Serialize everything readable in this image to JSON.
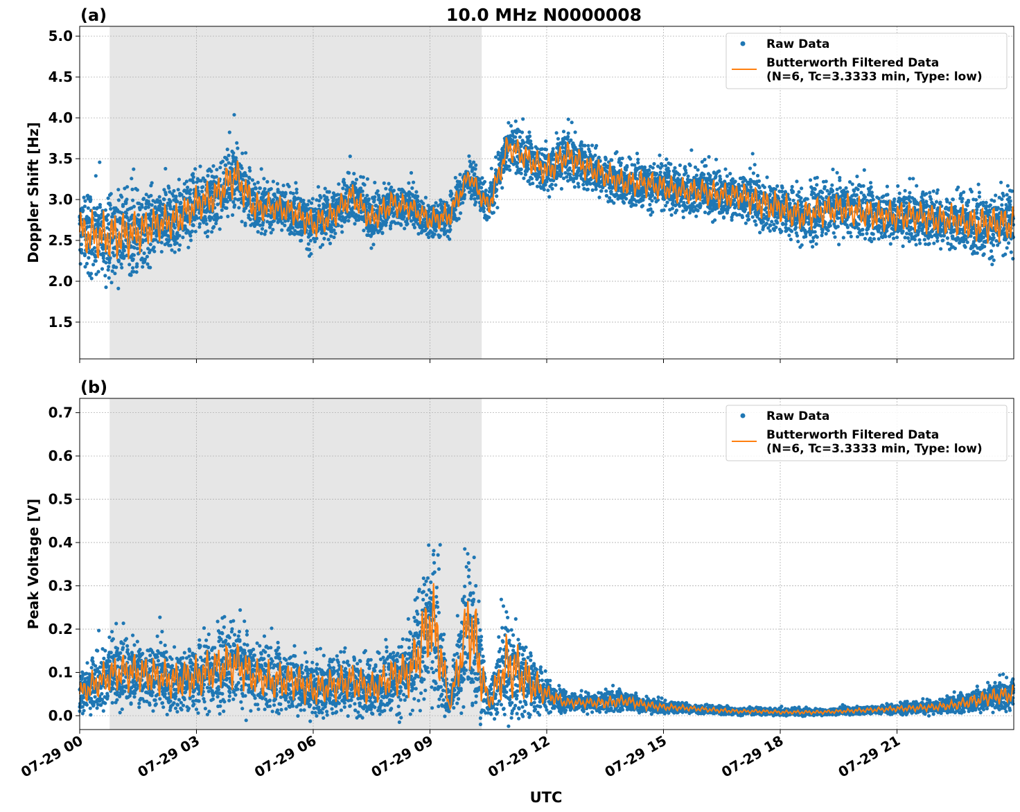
{
  "figure": {
    "title": "10.0 MHz N0000008",
    "xlabel": "UTC",
    "colors": {
      "raw": "#1f77b4",
      "filtered": "#ff7f0e",
      "shade": "#e6e6e6",
      "grid": "#b0b0b0"
    }
  },
  "chart_data": [
    {
      "type": "scatter",
      "panel_label": "(a)",
      "ylabel": "Doppler Shift [Hz]",
      "xlim": [
        0,
        24
      ],
      "ylim": [
        1.05,
        5.12
      ],
      "yticks": [
        1.5,
        2.0,
        2.5,
        3.0,
        3.5,
        4.0,
        4.5,
        5.0
      ],
      "ytick_labels": [
        "1.5",
        "2.0",
        "2.5",
        "3.0",
        "3.5",
        "4.0",
        "4.5",
        "5.0"
      ],
      "xticks": [
        0,
        3,
        6,
        9,
        12,
        15,
        18,
        21
      ],
      "xtick_labels": [
        "07-29 00",
        "07-29 03",
        "07-29 06",
        "07-29 09",
        "07-29 12",
        "07-29 15",
        "07-29 18",
        "07-29 21"
      ],
      "shaded_interval": [
        0.77,
        10.33
      ],
      "grid": true,
      "legend_position": "upper right",
      "legend": [
        "Raw Data",
        "Butterworth Filtered Data",
        "(N=6, Tc=3.3333 min, Type: low)"
      ],
      "series": [
        {
          "name": "Raw Data",
          "x": [
            0,
            0.5,
            1,
            1.5,
            2,
            2.5,
            3,
            3.5,
            4,
            4.5,
            5,
            5.5,
            6,
            6.5,
            7,
            7.5,
            8,
            8.5,
            9,
            9.5,
            10,
            10.5,
            11,
            11.5,
            12,
            12.5,
            13,
            13.5,
            14,
            14.5,
            15,
            15.5,
            16,
            16.5,
            17,
            17.5,
            18,
            18.5,
            19,
            19.5,
            20,
            20.5,
            21,
            21.5,
            22,
            22.5,
            23,
            23.5,
            24
          ],
          "y": [
            2.6,
            2.55,
            2.55,
            2.6,
            2.7,
            2.75,
            2.95,
            3.05,
            3.3,
            2.9,
            2.9,
            2.85,
            2.7,
            2.8,
            3.05,
            2.75,
            2.95,
            2.9,
            2.75,
            2.8,
            3.3,
            2.9,
            3.65,
            3.5,
            3.35,
            3.55,
            3.4,
            3.3,
            3.2,
            3.2,
            3.15,
            3.1,
            3.1,
            3.05,
            3.05,
            2.95,
            2.9,
            2.8,
            2.85,
            2.9,
            2.85,
            2.8,
            2.8,
            2.8,
            2.75,
            2.75,
            2.7,
            2.7,
            2.7
          ],
          "spread": [
            0.5,
            0.55,
            0.55,
            0.5,
            0.4,
            0.4,
            0.4,
            0.4,
            0.45,
            0.35,
            0.3,
            0.3,
            0.35,
            0.3,
            0.3,
            0.3,
            0.3,
            0.25,
            0.25,
            0.3,
            0.2,
            0.25,
            0.3,
            0.3,
            0.35,
            0.35,
            0.3,
            0.3,
            0.3,
            0.3,
            0.3,
            0.3,
            0.3,
            0.3,
            0.3,
            0.35,
            0.35,
            0.35,
            0.35,
            0.35,
            0.35,
            0.35,
            0.35,
            0.35,
            0.35,
            0.35,
            0.4,
            0.4,
            0.4
          ]
        },
        {
          "name": "Butterworth Filtered Data",
          "x": [
            0,
            0.5,
            1,
            1.5,
            2,
            2.5,
            3,
            3.5,
            4,
            4.5,
            5,
            5.5,
            6,
            6.5,
            7,
            7.5,
            8,
            8.5,
            9,
            9.5,
            10,
            10.5,
            11,
            11.5,
            12,
            12.5,
            13,
            13.5,
            14,
            14.5,
            15,
            15.5,
            16,
            16.5,
            17,
            17.5,
            18,
            18.5,
            19,
            19.5,
            20,
            20.5,
            21,
            21.5,
            22,
            22.5,
            23,
            23.5,
            24
          ],
          "y": [
            2.6,
            2.55,
            2.55,
            2.6,
            2.7,
            2.75,
            2.95,
            3.05,
            3.3,
            2.9,
            2.9,
            2.85,
            2.7,
            2.8,
            3.05,
            2.75,
            2.95,
            2.9,
            2.75,
            2.8,
            3.3,
            2.9,
            3.65,
            3.5,
            3.35,
            3.55,
            3.4,
            3.3,
            3.2,
            3.2,
            3.15,
            3.1,
            3.1,
            3.05,
            3.05,
            2.95,
            2.9,
            2.8,
            2.85,
            2.9,
            2.85,
            2.8,
            2.8,
            2.8,
            2.75,
            2.75,
            2.7,
            2.7,
            2.7
          ]
        }
      ]
    },
    {
      "type": "scatter",
      "panel_label": "(b)",
      "ylabel": "Peak Voltage [V]",
      "xlim": [
        0,
        24
      ],
      "ylim": [
        -0.032,
        0.733
      ],
      "yticks": [
        0.0,
        0.1,
        0.2,
        0.3,
        0.4,
        0.5,
        0.6,
        0.7
      ],
      "ytick_labels": [
        "0.0",
        "0.1",
        "0.2",
        "0.3",
        "0.4",
        "0.5",
        "0.6",
        "0.7"
      ],
      "xticks": [
        0,
        3,
        6,
        9,
        12,
        15,
        18,
        21
      ],
      "xtick_labels": [
        "07-29 00",
        "07-29 03",
        "07-29 06",
        "07-29 09",
        "07-29 12",
        "07-29 15",
        "07-29 18",
        "07-29 21"
      ],
      "shaded_interval": [
        0.77,
        10.33
      ],
      "grid": true,
      "legend_position": "upper right",
      "legend": [
        "Raw Data",
        "Butterworth Filtered Data",
        "(N=6, Tc=3.3333 min, Type: low)"
      ],
      "series": [
        {
          "name": "Raw Data",
          "x": [
            0,
            0.5,
            1,
            1.5,
            2,
            2.5,
            3,
            3.5,
            4,
            4.5,
            5,
            5.5,
            6,
            6.5,
            7,
            7.5,
            8,
            8.5,
            9,
            9.2,
            9.5,
            10,
            10.2,
            10.5,
            11,
            11.5,
            12,
            12.5,
            13,
            13.5,
            14,
            14.5,
            15,
            15.5,
            16,
            16.5,
            17,
            17.5,
            18,
            18.5,
            19,
            19.5,
            20,
            20.5,
            21,
            21.5,
            22,
            22.5,
            23,
            23.5,
            24
          ],
          "y": [
            0.05,
            0.08,
            0.1,
            0.1,
            0.09,
            0.08,
            0.09,
            0.11,
            0.12,
            0.09,
            0.08,
            0.08,
            0.06,
            0.07,
            0.08,
            0.06,
            0.09,
            0.1,
            0.22,
            0.18,
            0.02,
            0.22,
            0.15,
            0.03,
            0.12,
            0.08,
            0.05,
            0.03,
            0.03,
            0.03,
            0.035,
            0.025,
            0.02,
            0.018,
            0.015,
            0.012,
            0.01,
            0.01,
            0.008,
            0.008,
            0.008,
            0.01,
            0.012,
            0.014,
            0.016,
            0.018,
            0.02,
            0.025,
            0.035,
            0.045,
            0.05
          ],
          "spread": [
            0.05,
            0.07,
            0.08,
            0.08,
            0.08,
            0.08,
            0.09,
            0.09,
            0.1,
            0.08,
            0.08,
            0.08,
            0.07,
            0.07,
            0.08,
            0.07,
            0.08,
            0.1,
            0.18,
            0.18,
            0.02,
            0.18,
            0.18,
            0.03,
            0.14,
            0.1,
            0.04,
            0.02,
            0.02,
            0.025,
            0.025,
            0.02,
            0.015,
            0.012,
            0.01,
            0.01,
            0.008,
            0.008,
            0.008,
            0.008,
            0.008,
            0.008,
            0.01,
            0.01,
            0.012,
            0.014,
            0.016,
            0.02,
            0.03,
            0.035,
            0.04
          ]
        },
        {
          "name": "Butterworth Filtered Data",
          "x": [
            0,
            0.5,
            1,
            1.5,
            2,
            2.5,
            3,
            3.5,
            4,
            4.5,
            5,
            5.5,
            6,
            6.5,
            7,
            7.5,
            8,
            8.5,
            9,
            9.2,
            9.5,
            10,
            10.2,
            10.5,
            11,
            11.5,
            12,
            12.5,
            13,
            13.5,
            14,
            14.5,
            15,
            15.5,
            16,
            16.5,
            17,
            17.5,
            18,
            18.5,
            19,
            19.5,
            20,
            20.5,
            21,
            21.5,
            22,
            22.5,
            23,
            23.5,
            24
          ],
          "y": [
            0.05,
            0.08,
            0.1,
            0.1,
            0.09,
            0.08,
            0.09,
            0.11,
            0.12,
            0.09,
            0.08,
            0.08,
            0.06,
            0.07,
            0.08,
            0.06,
            0.09,
            0.1,
            0.22,
            0.18,
            0.02,
            0.22,
            0.15,
            0.03,
            0.12,
            0.08,
            0.05,
            0.03,
            0.03,
            0.03,
            0.035,
            0.025,
            0.02,
            0.018,
            0.015,
            0.012,
            0.01,
            0.01,
            0.008,
            0.008,
            0.008,
            0.01,
            0.012,
            0.014,
            0.016,
            0.018,
            0.02,
            0.025,
            0.035,
            0.045,
            0.05
          ]
        }
      ]
    }
  ]
}
